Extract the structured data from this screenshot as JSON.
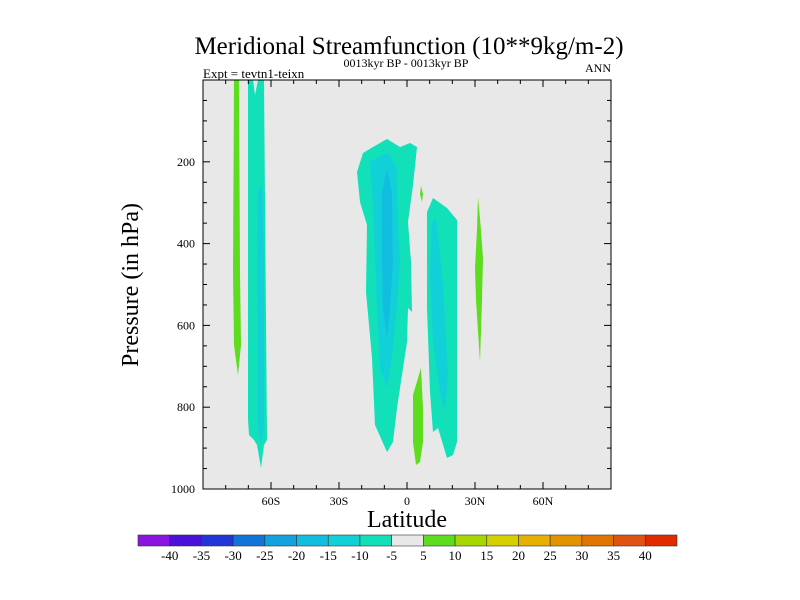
{
  "chart_data": {
    "type": "heatmap",
    "title": "Meridional Streamfunction (10**9kg/m-2)",
    "subtitle": "0013kyr BP - 0013kyr BP",
    "left_label": "Expt = tevtn1-teixn",
    "right_label": "ANN",
    "xlabel": "Latitude",
    "ylabel": "Pressure (in hPa)",
    "xlim": [
      -90,
      90
    ],
    "ylim": [
      1000,
      0
    ],
    "x_ticks": [
      {
        "value": -60,
        "label": "60S"
      },
      {
        "value": -30,
        "label": "30S"
      },
      {
        "value": 0,
        "label": "0"
      },
      {
        "value": 30,
        "label": "30N"
      },
      {
        "value": 60,
        "label": "60N"
      }
    ],
    "y_ticks": [
      {
        "value": 200,
        "label": "200"
      },
      {
        "value": 400,
        "label": "400"
      },
      {
        "value": 600,
        "label": "600"
      },
      {
        "value": 800,
        "label": "800"
      },
      {
        "value": 1000,
        "label": "1000"
      }
    ],
    "background_color": "#e8e8e8",
    "colorbar": {
      "labels": [
        "-40",
        "-35",
        "-30",
        "-25",
        "-20",
        "-15",
        "-10",
        "-5",
        "5",
        "10",
        "15",
        "20",
        "25",
        "30",
        "35",
        "40"
      ],
      "colors": [
        "#8a14e0",
        "#4a12d8",
        "#2236d8",
        "#1274d8",
        "#12a2e0",
        "#12bee0",
        "#12d0d8",
        "#12e0b8",
        "#e8e8e8",
        "#5edc1e",
        "#a6d800",
        "#d6d000",
        "#e6b000",
        "#e29400",
        "#e07400",
        "#e05212",
        "#e02a00"
      ]
    },
    "features": [
      {
        "name": "Southern high-latitude cell near 62S",
        "min_level": "-20 to -15"
      },
      {
        "name": "Tropical cell near 10S",
        "min_level": "-25 to -20"
      },
      {
        "name": "Tropical cell near 15N",
        "min_level": "-20 to -15"
      },
      {
        "name": "Positive bands near 75S, 5N, 30N",
        "max_level": "5 to 10"
      }
    ]
  }
}
